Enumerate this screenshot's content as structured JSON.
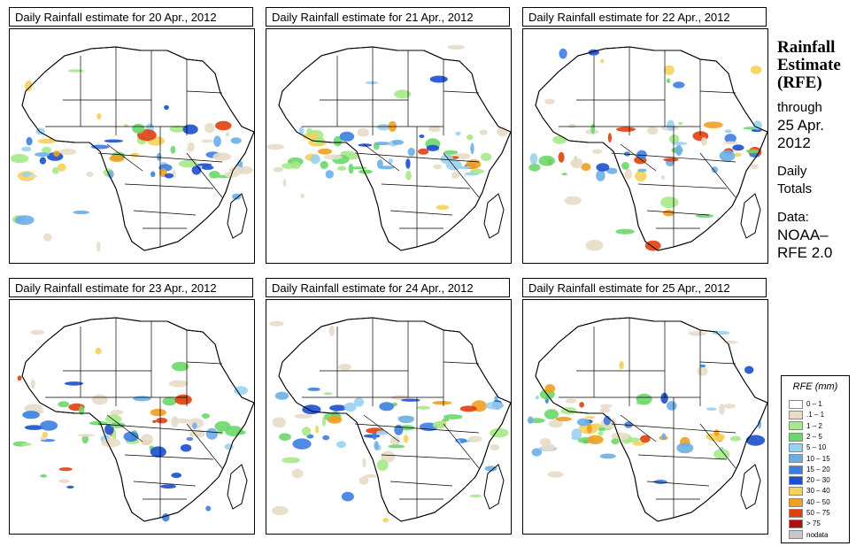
{
  "panels": [
    {
      "title": "Daily Rainfall estimate for  20 Apr., 2012"
    },
    {
      "title": "Daily Rainfall estimate for  21 Apr., 2012"
    },
    {
      "title": "Daily Rainfall estimate for  22 Apr., 2012"
    },
    {
      "title": "Daily Rainfall estimate for  23 Apr., 2012"
    },
    {
      "title": "Daily Rainfall estimate for  24 Apr., 2012"
    },
    {
      "title": "Daily Rainfall estimate for  25 Apr., 2012"
    }
  ],
  "sidebar": {
    "title_line1": "Rainfall",
    "title_line2": "Estimate",
    "title_line3": "(RFE)",
    "through": "through",
    "date_line1": "25 Apr.",
    "date_line2": "2012",
    "totals_line1": "Daily",
    "totals_line2": "Totals",
    "data_label": "Data:",
    "source_line1": "NOAA–",
    "source_line2": "RFE 2.0"
  },
  "legend": {
    "title": "RFE (mm)",
    "items": [
      {
        "label": "0 – 1",
        "color": "#ffffff"
      },
      {
        "label": ".1 – 1",
        "color": "#e8dcc8"
      },
      {
        "label": "1 – 2",
        "color": "#a6e88a"
      },
      {
        "label": "2 – 5",
        "color": "#6ad86a"
      },
      {
        "label": "5 – 10",
        "color": "#9ad0f0"
      },
      {
        "label": "10 – 15",
        "color": "#6aaee8"
      },
      {
        "label": "15 – 20",
        "color": "#3c7ee0"
      },
      {
        "label": "20 – 30",
        "color": "#1b4fd0"
      },
      {
        "label": "30 – 40",
        "color": "#f5d25a"
      },
      {
        "label": "40 – 50",
        "color": "#f0a020"
      },
      {
        "label": "50 – 75",
        "color": "#e04010"
      },
      {
        "label": "> 75",
        "color": "#b01010"
      },
      {
        "label": "nodata",
        "color": "#c8c8c8"
      }
    ]
  }
}
